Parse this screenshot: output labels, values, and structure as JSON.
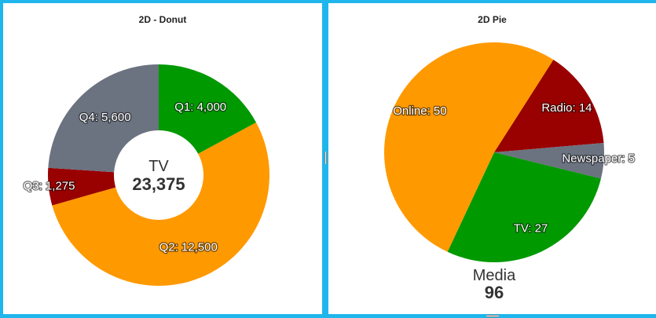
{
  "chart_data": [
    {
      "type": "donut",
      "title": "2D - Donut",
      "center": {
        "name": "TV",
        "total": "23,375"
      },
      "slices": [
        {
          "label": "Q1",
          "value": 4000,
          "text": "Q1: 4,000",
          "color": "#009900"
        },
        {
          "label": "Q2",
          "value": 12500,
          "text": "Q2: 12,500",
          "color": "#ff9900"
        },
        {
          "label": "Q3",
          "value": 1275,
          "text": "Q3: 1,275",
          "color": "#990000"
        },
        {
          "label": "Q4",
          "value": 5600,
          "text": "Q4: 5,600",
          "color": "#6b7280"
        }
      ]
    },
    {
      "type": "pie",
      "title": "2D Pie",
      "center": {
        "name": "Media",
        "total": "96"
      },
      "slices": [
        {
          "label": "Radio",
          "value": 14,
          "text": "Radio: 14",
          "color": "#990000"
        },
        {
          "label": "Newspaper",
          "value": 5,
          "text": "Newspaper: 5",
          "color": "#6b7280"
        },
        {
          "label": "TV",
          "value": 27,
          "text": "TV: 27",
          "color": "#009900"
        },
        {
          "label": "Online",
          "value": 50,
          "text": "Online: 50",
          "color": "#ff9900"
        }
      ]
    }
  ]
}
